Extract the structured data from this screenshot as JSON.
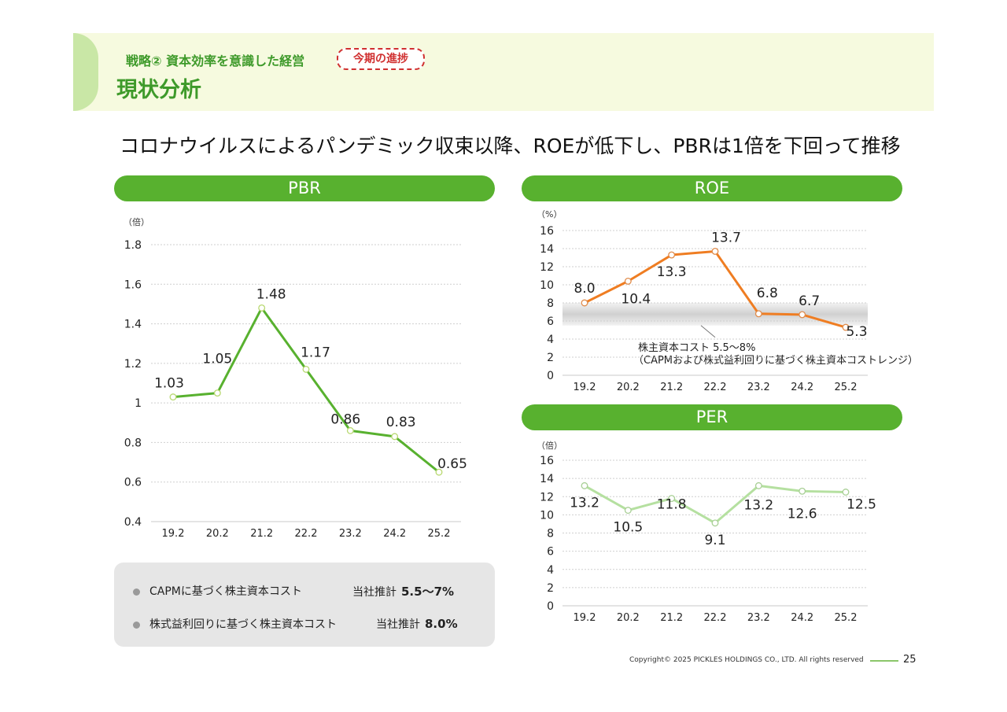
{
  "header": {
    "kicker": "戦略② 資本効率を意識した経営",
    "badge": "今期の進捗",
    "title": "現状分析"
  },
  "headline": "コロナウイルスによるパンデミック収束以降、ROEが低下し、PBRは1倍を下回って推移",
  "notes": [
    {
      "label": "CAPMに基づく株主資本コスト",
      "prefix": "当社推計",
      "value": "5.5～7%"
    },
    {
      "label": "株式益利回りに基づく株主資本コスト",
      "prefix": "当社推計",
      "value": "8.0%"
    }
  ],
  "footer": {
    "copyright": "Copyright© 2025 PICKLES HOLDINGS CO., LTD. All rights reserved",
    "page": "25"
  },
  "colors": {
    "pbr": "#58b12f",
    "roe": "#ef7d22",
    "per": "#b5e0a0",
    "pill": "#58b12f",
    "title": "#3e9a2a"
  },
  "chart_data": [
    {
      "id": "pbr",
      "type": "line",
      "title": "PBR",
      "unit": "（倍）",
      "categories": [
        "19.2",
        "20.2",
        "21.2",
        "22.2",
        "23.2",
        "24.2",
        "25.2"
      ],
      "values": [
        1.03,
        1.05,
        1.48,
        1.17,
        0.86,
        0.83,
        0.65
      ],
      "labels": [
        "1.03",
        "1.05",
        "1.48",
        "1.17",
        "0.86",
        "0.83",
        "0.65"
      ],
      "ylim": [
        0.4,
        1.8
      ],
      "yticks": [
        "0.4",
        "0.6",
        "0.8",
        "1",
        "1.2",
        "1.4",
        "1.6",
        "1.8"
      ],
      "grid": true
    },
    {
      "id": "roe",
      "type": "line",
      "title": "ROE",
      "unit": "（%）",
      "categories": [
        "19.2",
        "20.2",
        "21.2",
        "22.2",
        "23.2",
        "24.2",
        "25.2"
      ],
      "values": [
        8.0,
        10.4,
        13.3,
        13.7,
        6.8,
        6.7,
        5.3
      ],
      "labels": [
        "8.0",
        "10.4",
        "13.3",
        "13.7",
        "6.8",
        "6.7",
        "5.3"
      ],
      "ylim": [
        0,
        16
      ],
      "yticks": [
        "0",
        "2",
        "4",
        "6",
        "8",
        "10",
        "12",
        "14",
        "16"
      ],
      "band": {
        "from": 5.5,
        "to": 8.0,
        "label1": "株主資本コスト 5.5～8%",
        "label2": "（CAPMおよび株式益利回りに基づく株主資本コストレンジ）"
      },
      "grid": true
    },
    {
      "id": "per",
      "type": "line",
      "title": "PER",
      "unit": "（倍）",
      "categories": [
        "19.2",
        "20.2",
        "21.2",
        "22.2",
        "23.2",
        "24.2",
        "25.2"
      ],
      "values": [
        13.2,
        10.5,
        11.8,
        9.1,
        13.2,
        12.6,
        12.5
      ],
      "labels": [
        "13.2",
        "10.5",
        "11.8",
        "9.1",
        "13.2",
        "12.6",
        "12.5"
      ],
      "ylim": [
        0,
        16
      ],
      "yticks": [
        "0",
        "2",
        "4",
        "6",
        "8",
        "10",
        "12",
        "14",
        "16"
      ],
      "grid": true
    }
  ]
}
